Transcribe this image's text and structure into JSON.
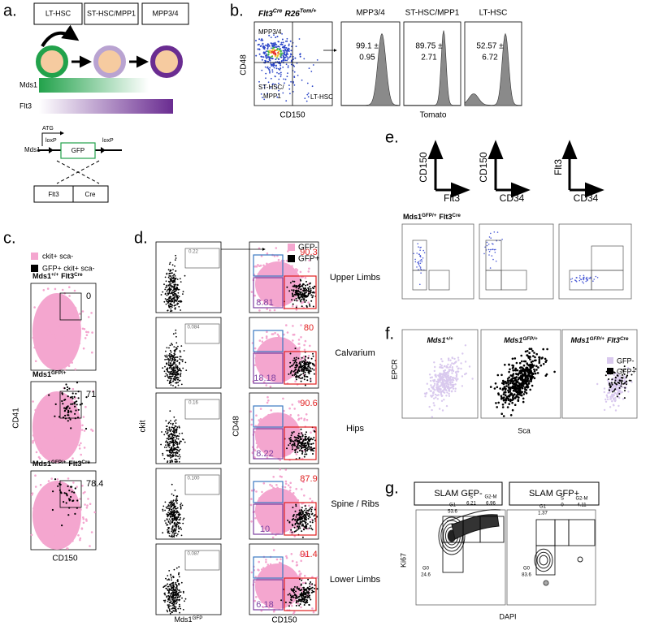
{
  "panel_a": {
    "label": "a.",
    "populations": [
      "LT-HSC",
      "ST-HSC/MPP1",
      "MPP3/4"
    ],
    "gradients": [
      "Mds1",
      "Flt3"
    ],
    "construct": {
      "atg": "ATG",
      "loxp": [
        "loxP",
        "loxP"
      ],
      "gene": "Mds1",
      "reporter": "GFP",
      "allele": [
        "Flt3",
        "Cre"
      ]
    }
  },
  "panel_b": {
    "label": "b.",
    "title": [
      {
        "text": "Flt3",
        "sup": "Cre"
      },
      {
        "text": "R26",
        "sup": "Tom/+"
      }
    ],
    "gates": [
      "MPP3/4",
      "ST-HSC/",
      "MPP1",
      "LT-HSC"
    ],
    "y_label": "CD48",
    "x_label": "CD150",
    "histograms": [
      {
        "title": "MPP3/4",
        "lines": [
          "99.1 ±",
          "0.95"
        ]
      },
      {
        "title": "ST-HSC/MPP1",
        "lines": [
          "89.75 ±",
          "2.71"
        ]
      },
      {
        "title": "LT-HSC",
        "lines": [
          "52.57 ±",
          "6.72"
        ]
      }
    ],
    "hist_x_label": "Tomato"
  },
  "panel_c": {
    "label": "c.",
    "legend": [
      "ckit+ sca-",
      "GFP+ ckit+ sca-"
    ],
    "plots": [
      {
        "title": [
          {
            "text": "Mds1",
            "sup": "+/+"
          },
          {
            "text": "Flt3",
            "sup": "Cre"
          }
        ],
        "value": "0"
      },
      {
        "title": [
          {
            "text": "Mds1",
            "sup": "GFP/+"
          }
        ],
        "value": "71"
      },
      {
        "title": [
          {
            "text": "Mds1",
            "sup": "GFP/+"
          },
          {
            "text": "Flt3",
            "sup": "Cre"
          }
        ],
        "value": "78.4"
      }
    ],
    "y_label": "CD41",
    "x_label": "CD150"
  },
  "panel_d": {
    "label": "d.",
    "left_values": [
      "0.22",
      "0.084",
      "0.16",
      "0.100",
      "0.087"
    ],
    "left_y_label": "ckit",
    "left_x_label": [
      {
        "text": "Mds1",
        "sup": "GFP"
      }
    ],
    "legend": [
      "GFP-",
      "GFP+"
    ],
    "tissues": [
      {
        "name": "Upper Limbs",
        "red": "90.3",
        "purple": "8.81"
      },
      {
        "name": "Calvarium",
        "red": "80",
        "purple": "18.18"
      },
      {
        "name": "Hips",
        "red": "90.6",
        "purple": "8.22"
      },
      {
        "name": "Spine / Ribs",
        "red": "87.9",
        "purple": "10"
      },
      {
        "name": "Lower Limbs",
        "red": "91.4",
        "purple": "6.18"
      }
    ],
    "right_y_label": "CD48",
    "right_x_label": "CD150"
  },
  "panel_e": {
    "label": "e.",
    "axes": [
      {
        "y": "CD150",
        "x": "Flt3"
      },
      {
        "y": "CD150",
        "x": "CD34"
      },
      {
        "y": "Flt3",
        "x": "CD34"
      }
    ],
    "title": [
      {
        "text": "Mds1",
        "sup": "GFP/+"
      },
      {
        "text": "Flt3",
        "sup": "Cre"
      }
    ]
  },
  "panel_f": {
    "label": "f.",
    "titles": [
      [
        {
          "text": "Mds1",
          "sup": "+/+"
        }
      ],
      [
        {
          "text": "Mds1",
          "sup": "GFP/+"
        }
      ],
      [
        {
          "text": "Mds1",
          "sup": "GFP/+"
        },
        {
          "text": "Flt3",
          "sup": "Cre"
        }
      ]
    ],
    "legend": [
      "GFP-",
      "GFP+"
    ],
    "y_label": "EPCR",
    "x_label": "Sca"
  },
  "panel_g": {
    "label": "g.",
    "headers": [
      "SLAM GFP-",
      "SLAM GFP+"
    ],
    "plots": [
      {
        "G1": [
          "G1",
          "53.6"
        ],
        "S": [
          "S",
          "6.21"
        ],
        "G2M": [
          "G2-M",
          "6.96"
        ],
        "G0": [
          "G0",
          "24.6"
        ]
      },
      {
        "G1": [
          "G1",
          "1.37"
        ],
        "S": [
          "S",
          "0"
        ],
        "G2M": [
          "G2-M",
          "4.11"
        ],
        "G0": [
          "G0",
          "83.6"
        ]
      }
    ],
    "y_label": "Ki67",
    "x_label": "DAPI"
  }
}
